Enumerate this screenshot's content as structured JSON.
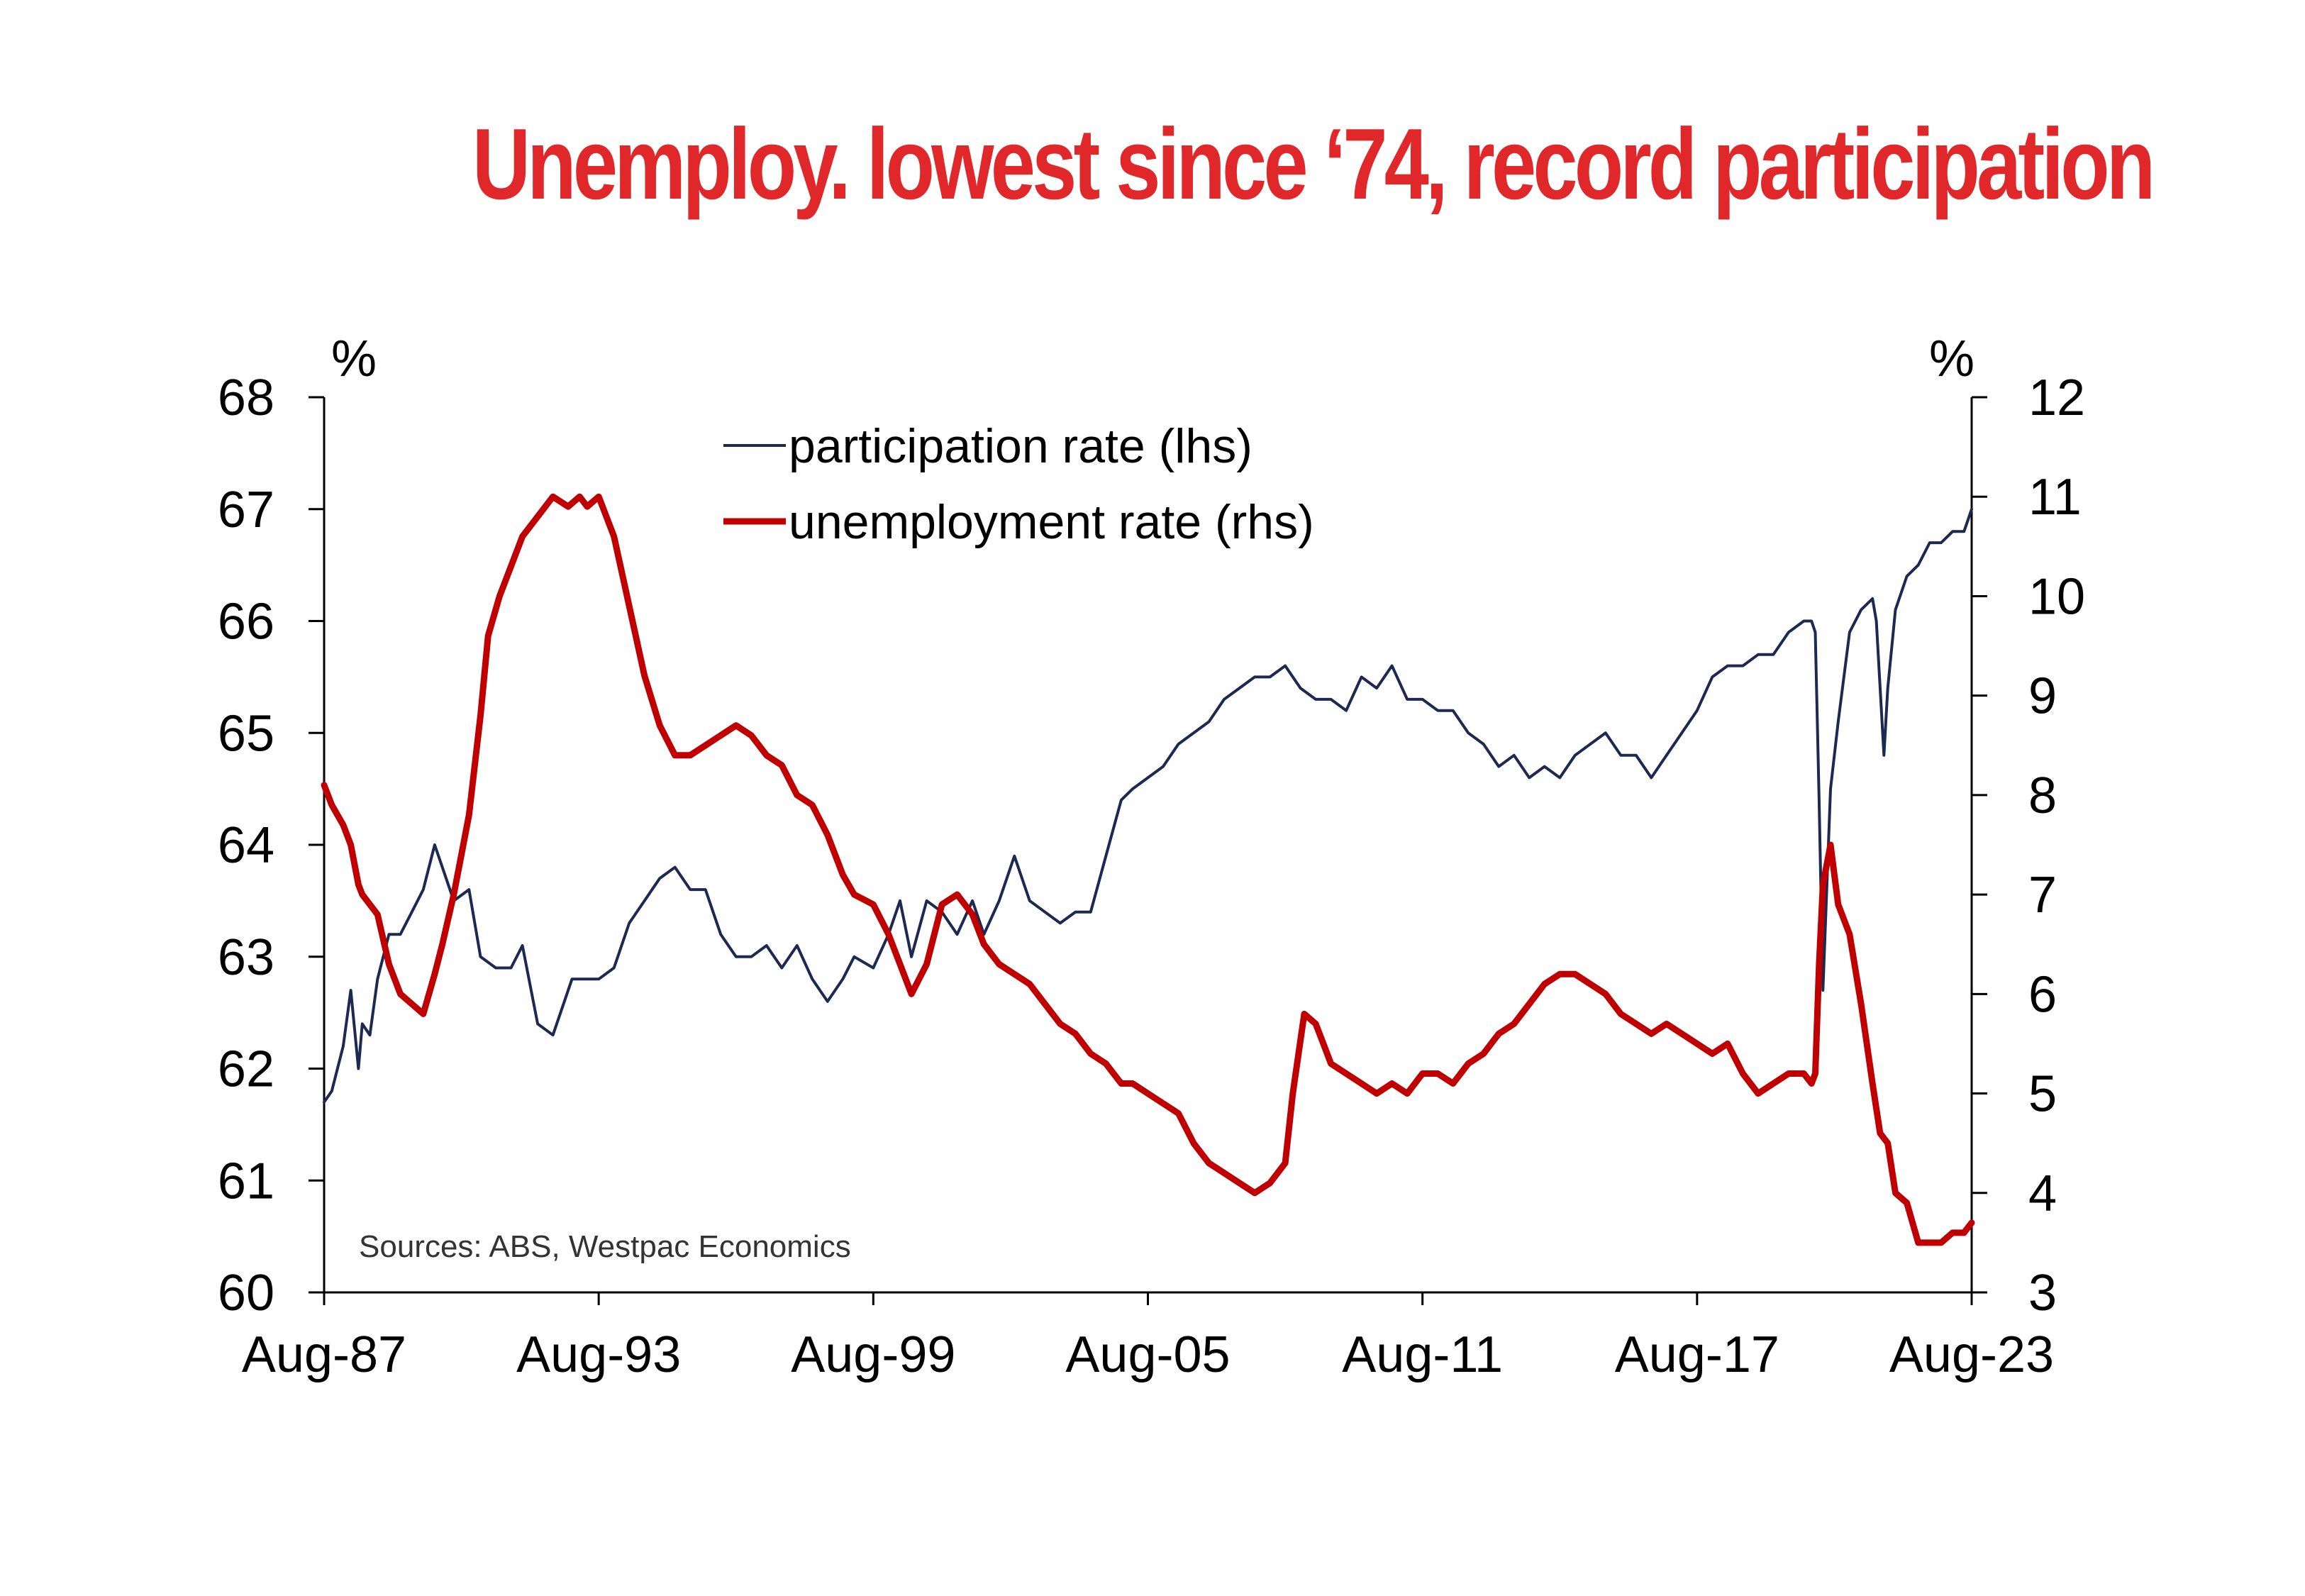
{
  "colors": {
    "title": "#e0282a",
    "participation": "#1c2a52",
    "unemployment": "#c00000",
    "axis": "#000000"
  },
  "chart_data": {
    "type": "line",
    "title": "Unemploy. lowest since ‘74, record participation",
    "source": "Sources: ABS, Westpac Economics",
    "left_axis": {
      "unit": "%",
      "ylim": [
        60,
        68
      ],
      "ticks": [
        "60",
        "61",
        "62",
        "63",
        "64",
        "65",
        "66",
        "67",
        "68"
      ]
    },
    "right_axis": {
      "unit": "%",
      "ylim": [
        3,
        12
      ],
      "ticks": [
        "3",
        "4",
        "5",
        "6",
        "7",
        "8",
        "9",
        "10",
        "11",
        "12"
      ]
    },
    "x_axis": {
      "range": [
        "1987-08",
        "2023-08"
      ],
      "ticks": [
        "Aug-87",
        "Aug-93",
        "Aug-99",
        "Aug-05",
        "Aug-11",
        "Aug-17",
        "Aug-23"
      ]
    },
    "legend": {
      "placement": "top-center",
      "items": [
        {
          "label": "participation rate (lhs)",
          "series": "participation"
        },
        {
          "label": "unemployment rate (rhs)",
          "series": "unemployment"
        }
      ]
    },
    "series": [
      {
        "name": "participation rate (lhs)",
        "axis": "left",
        "x": [
          "1987-08",
          "1987-10",
          "1988-01",
          "1988-03",
          "1988-05",
          "1988-06",
          "1988-08",
          "1988-10",
          "1989-01",
          "1989-04",
          "1989-07",
          "1989-10",
          "1990-01",
          "1990-03",
          "1990-06",
          "1990-10",
          "1991-01",
          "1991-05",
          "1991-09",
          "1991-12",
          "1992-04",
          "1992-08",
          "1993-01",
          "1993-05",
          "1993-08",
          "1993-12",
          "1994-04",
          "1994-08",
          "1994-12",
          "1995-04",
          "1995-08",
          "1995-12",
          "1996-04",
          "1996-08",
          "1996-12",
          "1997-04",
          "1997-08",
          "1997-12",
          "1998-04",
          "1998-08",
          "1998-12",
          "1999-03",
          "1999-08",
          "1999-12",
          "2000-03",
          "2000-06",
          "2000-10",
          "2001-02",
          "2001-06",
          "2001-10",
          "2002-01",
          "2002-05",
          "2002-09",
          "2003-01",
          "2003-05",
          "2003-09",
          "2004-01",
          "2004-05",
          "2004-09",
          "2005-01",
          "2005-04",
          "2005-08",
          "2005-12",
          "2006-04",
          "2006-08",
          "2006-12",
          "2007-04",
          "2007-08",
          "2007-12",
          "2008-04",
          "2008-08",
          "2008-12",
          "2009-04",
          "2009-08",
          "2009-12",
          "2010-04",
          "2010-08",
          "2010-12",
          "2011-04",
          "2011-08",
          "2011-12",
          "2012-04",
          "2012-08",
          "2012-12",
          "2013-04",
          "2013-08",
          "2013-12",
          "2014-04",
          "2014-08",
          "2014-12",
          "2015-04",
          "2015-08",
          "2015-12",
          "2016-04",
          "2016-08",
          "2016-12",
          "2017-04",
          "2017-08",
          "2017-12",
          "2018-04",
          "2018-08",
          "2018-12",
          "2019-04",
          "2019-08",
          "2019-12",
          "2020-02",
          "2020-03",
          "2020-04",
          "2020-05",
          "2020-07",
          "2020-09",
          "2020-12",
          "2021-03",
          "2021-06",
          "2021-07",
          "2021-09",
          "2021-10",
          "2021-12",
          "2022-03",
          "2022-06",
          "2022-09",
          "2022-12",
          "2023-03",
          "2023-06",
          "2023-08"
        ],
        "y": [
          61.7,
          61.8,
          62.2,
          62.7,
          62.0,
          62.4,
          62.3,
          62.8,
          63.2,
          63.2,
          63.4,
          63.6,
          64.0,
          63.8,
          63.5,
          63.6,
          63.0,
          62.9,
          62.9,
          63.1,
          62.4,
          62.3,
          62.8,
          62.8,
          62.8,
          62.9,
          63.3,
          63.5,
          63.7,
          63.8,
          63.6,
          63.6,
          63.2,
          63.0,
          63.0,
          63.1,
          62.9,
          63.1,
          62.8,
          62.6,
          62.8,
          63.0,
          62.9,
          63.2,
          63.5,
          63.0,
          63.5,
          63.4,
          63.2,
          63.5,
          63.2,
          63.5,
          63.9,
          63.5,
          63.4,
          63.3,
          63.4,
          63.4,
          63.9,
          64.4,
          64.5,
          64.6,
          64.7,
          64.9,
          65.0,
          65.1,
          65.3,
          65.4,
          65.5,
          65.5,
          65.6,
          65.4,
          65.3,
          65.3,
          65.2,
          65.5,
          65.4,
          65.6,
          65.3,
          65.3,
          65.2,
          65.2,
          65.0,
          64.9,
          64.7,
          64.8,
          64.6,
          64.7,
          64.6,
          64.8,
          64.9,
          65.0,
          64.8,
          64.8,
          64.6,
          64.8,
          65.0,
          65.2,
          65.5,
          65.6,
          65.6,
          65.7,
          65.7,
          65.9,
          66.0,
          66.0,
          65.9,
          64.4,
          62.7,
          64.5,
          65.1,
          65.9,
          66.1,
          66.2,
          66.0,
          64.8,
          65.4,
          66.1,
          66.4,
          66.5,
          66.7,
          66.7,
          66.8,
          66.8,
          67.0
        ]
      },
      {
        "name": "unemployment rate (rhs)",
        "axis": "right",
        "x": [
          "1987-08",
          "1987-10",
          "1988-01",
          "1988-03",
          "1988-05",
          "1988-06",
          "1988-08",
          "1988-10",
          "1989-01",
          "1989-04",
          "1989-07",
          "1989-10",
          "1990-01",
          "1990-03",
          "1990-06",
          "1990-10",
          "1991-01",
          "1991-03",
          "1991-06",
          "1991-09",
          "1991-12",
          "1992-04",
          "1992-08",
          "1992-12",
          "1993-03",
          "1993-05",
          "1993-08",
          "1993-12",
          "1994-04",
          "1994-08",
          "1994-12",
          "1995-04",
          "1995-08",
          "1995-12",
          "1996-04",
          "1996-08",
          "1996-12",
          "1997-04",
          "1997-08",
          "1997-12",
          "1998-04",
          "1998-08",
          "1998-12",
          "1999-03",
          "1999-08",
          "1999-12",
          "2000-03",
          "2000-06",
          "2000-10",
          "2001-02",
          "2001-06",
          "2001-10",
          "2002-01",
          "2002-05",
          "2002-09",
          "2003-01",
          "2003-05",
          "2003-09",
          "2004-01",
          "2004-05",
          "2004-09",
          "2005-01",
          "2005-04",
          "2005-08",
          "2005-12",
          "2006-04",
          "2006-08",
          "2006-12",
          "2007-04",
          "2007-08",
          "2007-12",
          "2008-04",
          "2008-08",
          "2008-10",
          "2009-01",
          "2009-04",
          "2009-06",
          "2009-08",
          "2009-12",
          "2010-04",
          "2010-08",
          "2010-12",
          "2011-04",
          "2011-08",
          "2011-12",
          "2012-04",
          "2012-08",
          "2012-12",
          "2013-04",
          "2013-08",
          "2013-12",
          "2014-04",
          "2014-08",
          "2014-12",
          "2015-04",
          "2015-08",
          "2015-12",
          "2016-04",
          "2016-08",
          "2016-12",
          "2017-04",
          "2017-08",
          "2017-12",
          "2018-04",
          "2018-08",
          "2018-12",
          "2019-04",
          "2019-08",
          "2019-12",
          "2020-02",
          "2020-03",
          "2020-04",
          "2020-05",
          "2020-07",
          "2020-09",
          "2020-12",
          "2021-03",
          "2021-06",
          "2021-08",
          "2021-10",
          "2021-12",
          "2022-03",
          "2022-06",
          "2022-09",
          "2022-12",
          "2023-03",
          "2023-06",
          "2023-08"
        ],
        "y": [
          8.1,
          7.9,
          7.7,
          7.5,
          7.1,
          7.0,
          6.9,
          6.8,
          6.3,
          6.0,
          5.9,
          5.8,
          6.2,
          6.5,
          7.0,
          7.8,
          8.8,
          9.6,
          10.0,
          10.3,
          10.6,
          10.8,
          11.0,
          10.9,
          11.0,
          10.9,
          11.0,
          10.6,
          9.9,
          9.2,
          8.7,
          8.4,
          8.4,
          8.5,
          8.6,
          8.7,
          8.6,
          8.4,
          8.3,
          8.0,
          7.9,
          7.6,
          7.2,
          7.0,
          6.9,
          6.6,
          6.3,
          6.0,
          6.3,
          6.9,
          7.0,
          6.8,
          6.5,
          6.3,
          6.2,
          6.1,
          5.9,
          5.7,
          5.6,
          5.4,
          5.3,
          5.1,
          5.1,
          5.0,
          4.9,
          4.8,
          4.5,
          4.3,
          4.2,
          4.1,
          4.0,
          4.1,
          4.3,
          5.0,
          5.8,
          5.7,
          5.5,
          5.3,
          5.2,
          5.1,
          5.0,
          5.1,
          5.0,
          5.2,
          5.2,
          5.1,
          5.3,
          5.4,
          5.6,
          5.7,
          5.9,
          6.1,
          6.2,
          6.2,
          6.1,
          6.0,
          5.8,
          5.7,
          5.6,
          5.7,
          5.6,
          5.5,
          5.4,
          5.5,
          5.2,
          5.0,
          5.1,
          5.2,
          5.2,
          5.1,
          5.2,
          6.3,
          7.1,
          7.5,
          6.9,
          6.6,
          5.9,
          5.1,
          4.6,
          4.5,
          4.0,
          3.9,
          3.5,
          3.5,
          3.5,
          3.6,
          3.6,
          3.7
        ]
      }
    ]
  }
}
